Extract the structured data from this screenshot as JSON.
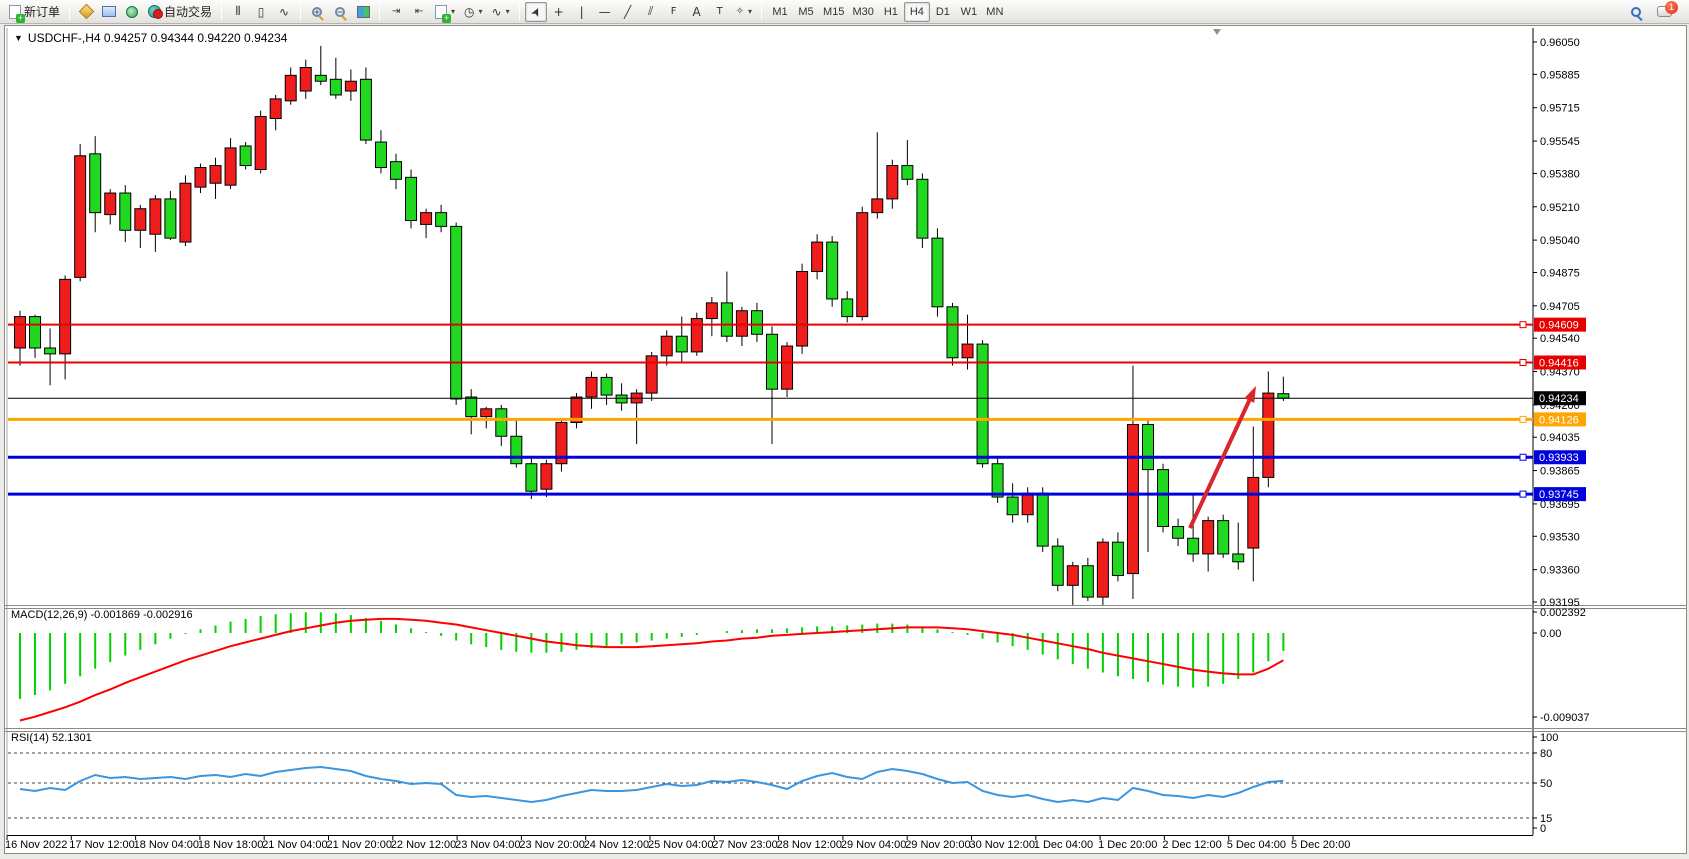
{
  "toolbar": {
    "new_order_label": "新订单",
    "auto_trading_label": "自动交易",
    "chart_tools": {
      "bars": "⫴",
      "candles": "▯",
      "line": "∿",
      "zoom_in": "+",
      "zoom_out": "−",
      "cursor": "➤",
      "crosshair": "+",
      "vline": "|",
      "hline": "—",
      "trendline": "╱",
      "channel": "⫽",
      "fibo": "F",
      "text": "A",
      "label": "T",
      "arrows": "✧"
    },
    "timeframes": [
      "M1",
      "M5",
      "M15",
      "M30",
      "H1",
      "H4",
      "D1",
      "W1",
      "MN"
    ],
    "active_timeframe": "H4",
    "notification_count": "1"
  },
  "window": {
    "symbol_title": "USDCHF-,H4  0.94257 0.94344 0.94220 0.94234",
    "expander": "▼"
  },
  "chart_data": {
    "type": "candlestick",
    "symbol": "USDCHF-",
    "timeframe": "H4",
    "current_ohlc": {
      "open": "0.94257",
      "high": "0.94344",
      "low": "0.94220",
      "close": "0.94234"
    },
    "bull_color": "#f01d1d",
    "bear_color": "#1fd81f",
    "y_ticks": [
      "0.96050",
      "0.95885",
      "0.95715",
      "0.95545",
      "0.95380",
      "0.95210",
      "0.95040",
      "0.94875",
      "0.94705",
      "0.94540",
      "0.94370",
      "0.94200",
      "0.94035",
      "0.93865",
      "0.93695",
      "0.93530",
      "0.93360",
      "0.93195"
    ],
    "y_range": {
      "top_price": 0.9605,
      "bottom_price": 0.93195
    },
    "x_labels": [
      "16 Nov 2022",
      "17 Nov 12:00",
      "18 Nov 04:00",
      "18 Nov 18:00",
      "21 Nov 04:00",
      "21 Nov 20:00",
      "22 Nov 12:00",
      "23 Nov 04:00",
      "23 Nov 20:00",
      "24 Nov 12:00",
      "25 Nov 04:00",
      "27 Nov 23:00",
      "28 Nov 12:00",
      "29 Nov 04:00",
      "29 Nov 20:00",
      "30 Nov 12:00",
      "1 Dec 04:00",
      "1 Dec 20:00",
      "2 Dec 12:00",
      "5 Dec 04:00",
      "5 Dec 20:00"
    ],
    "hlines": [
      {
        "price": 0.94609,
        "label": "0.94609",
        "color": "#e60000",
        "width": 2
      },
      {
        "price": 0.94416,
        "label": "0.94416",
        "color": "#e60000",
        "width": 2
      },
      {
        "price": 0.94234,
        "label": "0.94234",
        "color": "#000000",
        "width": 1,
        "current": true
      },
      {
        "price": 0.94126,
        "label": "0.94126",
        "color": "#ffa500",
        "width": 3
      },
      {
        "price": 0.93933,
        "label": "0.93933",
        "color": "#0000dd",
        "width": 3
      },
      {
        "price": 0.93745,
        "label": "0.93745",
        "color": "#0000dd",
        "width": 3
      }
    ],
    "candles": [
      [
        0.9449,
        0.9468,
        0.944,
        0.9465
      ],
      [
        0.9465,
        0.9466,
        0.9444,
        0.9449
      ],
      [
        0.9449,
        0.9459,
        0.943,
        0.9446
      ],
      [
        0.9446,
        0.9486,
        0.9433,
        0.9484
      ],
      [
        0.9485,
        0.9553,
        0.9483,
        0.9547
      ],
      [
        0.9548,
        0.9557,
        0.9508,
        0.9518
      ],
      [
        0.9517,
        0.953,
        0.9512,
        0.9528
      ],
      [
        0.9528,
        0.9532,
        0.9503,
        0.9509
      ],
      [
        0.9509,
        0.9522,
        0.95,
        0.952
      ],
      [
        0.9507,
        0.9527,
        0.9498,
        0.9525
      ],
      [
        0.9525,
        0.9529,
        0.9504,
        0.9505
      ],
      [
        0.9503,
        0.9537,
        0.9501,
        0.9533
      ],
      [
        0.9531,
        0.9543,
        0.9528,
        0.9541
      ],
      [
        0.9533,
        0.9546,
        0.9525,
        0.9542
      ],
      [
        0.9532,
        0.9556,
        0.953,
        0.9551
      ],
      [
        0.9552,
        0.9554,
        0.954,
        0.9542
      ],
      [
        0.954,
        0.957,
        0.9538,
        0.9567
      ],
      [
        0.9566,
        0.9578,
        0.956,
        0.9576
      ],
      [
        0.9575,
        0.9592,
        0.9573,
        0.9588
      ],
      [
        0.958,
        0.9596,
        0.9576,
        0.9592
      ],
      [
        0.9588,
        0.9603,
        0.9583,
        0.9585
      ],
      [
        0.9586,
        0.9597,
        0.9576,
        0.9578
      ],
      [
        0.958,
        0.9591,
        0.9575,
        0.9585
      ],
      [
        0.9586,
        0.9592,
        0.9553,
        0.9555
      ],
      [
        0.9554,
        0.956,
        0.9538,
        0.9541
      ],
      [
        0.9544,
        0.9548,
        0.953,
        0.9535
      ],
      [
        0.9536,
        0.954,
        0.951,
        0.9514
      ],
      [
        0.9512,
        0.952,
        0.9505,
        0.9518
      ],
      [
        0.9518,
        0.9522,
        0.9508,
        0.9511
      ],
      [
        0.9511,
        0.9513,
        0.942,
        0.9423
      ],
      [
        0.9424,
        0.9428,
        0.9405,
        0.9414
      ],
      [
        0.9414,
        0.9419,
        0.9408,
        0.9418
      ],
      [
        0.9418,
        0.942,
        0.9399,
        0.9404
      ],
      [
        0.9404,
        0.9412,
        0.9388,
        0.939
      ],
      [
        0.939,
        0.9394,
        0.9372,
        0.9376
      ],
      [
        0.9377,
        0.9392,
        0.9373,
        0.939
      ],
      [
        0.939,
        0.9413,
        0.9386,
        0.9411
      ],
      [
        0.9411,
        0.9426,
        0.9408,
        0.9424
      ],
      [
        0.9424,
        0.9437,
        0.9418,
        0.9434
      ],
      [
        0.9434,
        0.9436,
        0.942,
        0.9425
      ],
      [
        0.9425,
        0.9431,
        0.9417,
        0.9421
      ],
      [
        0.9421,
        0.9428,
        0.94,
        0.9426
      ],
      [
        0.9426,
        0.9447,
        0.9422,
        0.9445
      ],
      [
        0.9445,
        0.9458,
        0.944,
        0.9455
      ],
      [
        0.9455,
        0.9465,
        0.9442,
        0.9447
      ],
      [
        0.9447,
        0.9467,
        0.9445,
        0.9464
      ],
      [
        0.9464,
        0.9475,
        0.9455,
        0.9472
      ],
      [
        0.9472,
        0.9488,
        0.9452,
        0.9455
      ],
      [
        0.9455,
        0.947,
        0.945,
        0.9468
      ],
      [
        0.9468,
        0.9472,
        0.9452,
        0.9456
      ],
      [
        0.9456,
        0.946,
        0.94,
        0.9428
      ],
      [
        0.9428,
        0.9452,
        0.9424,
        0.945
      ],
      [
        0.945,
        0.9492,
        0.9446,
        0.9488
      ],
      [
        0.9488,
        0.9507,
        0.9484,
        0.9503
      ],
      [
        0.9503,
        0.9506,
        0.947,
        0.9474
      ],
      [
        0.9474,
        0.9478,
        0.9462,
        0.9465
      ],
      [
        0.9465,
        0.9521,
        0.9463,
        0.9518
      ],
      [
        0.9518,
        0.9559,
        0.9515,
        0.9525
      ],
      [
        0.9525,
        0.9545,
        0.952,
        0.9542
      ],
      [
        0.9542,
        0.9555,
        0.9532,
        0.9535
      ],
      [
        0.9535,
        0.9538,
        0.95,
        0.9505
      ],
      [
        0.9505,
        0.951,
        0.9465,
        0.947
      ],
      [
        0.947,
        0.9472,
        0.944,
        0.9444
      ],
      [
        0.9444,
        0.9466,
        0.9438,
        0.9451
      ],
      [
        0.9451,
        0.9453,
        0.9388,
        0.939
      ],
      [
        0.939,
        0.9394,
        0.937,
        0.9373
      ],
      [
        0.9373,
        0.938,
        0.936,
        0.9364
      ],
      [
        0.9364,
        0.9378,
        0.936,
        0.9375
      ],
      [
        0.9375,
        0.9378,
        0.9345,
        0.9348
      ],
      [
        0.9348,
        0.9352,
        0.9325,
        0.9328
      ],
      [
        0.9328,
        0.934,
        0.9318,
        0.9338
      ],
      [
        0.9338,
        0.9342,
        0.932,
        0.9322
      ],
      [
        0.9322,
        0.9352,
        0.9318,
        0.935
      ],
      [
        0.935,
        0.9355,
        0.933,
        0.9333
      ],
      [
        0.9334,
        0.944,
        0.9321,
        0.941
      ],
      [
        0.941,
        0.9412,
        0.9345,
        0.9387
      ],
      [
        0.9387,
        0.939,
        0.9355,
        0.9358
      ],
      [
        0.9358,
        0.9362,
        0.9348,
        0.9352
      ],
      [
        0.9352,
        0.9375,
        0.934,
        0.9344
      ],
      [
        0.9344,
        0.9363,
        0.9335,
        0.9361
      ],
      [
        0.9361,
        0.9364,
        0.9342,
        0.9344
      ],
      [
        0.9344,
        0.936,
        0.9336,
        0.934
      ],
      [
        0.9347,
        0.9409,
        0.933,
        0.9383
      ],
      [
        0.9383,
        0.9437,
        0.9378,
        0.9426
      ],
      [
        0.94257,
        0.94344,
        0.9422,
        0.94234
      ]
    ],
    "indicators": {
      "macd": {
        "label": "MACD(12,26,9)",
        "values_text": "-0.001869 -0.002916",
        "label_full": "MACD(12,26,9) -0.001869 -0.002916",
        "ticks": [
          "0.002392",
          "0.00",
          "-0.009037"
        ],
        "histogram_color": "#00d200",
        "signal_color": "#ff0000",
        "histogram": [
          -0.007,
          -0.0066,
          -0.0061,
          -0.0054,
          -0.0046,
          -0.0038,
          -0.0031,
          -0.0024,
          -0.0018,
          -0.0012,
          -0.0006,
          -0.0001,
          0.0004,
          0.0008,
          0.0012,
          0.0015,
          0.0018,
          0.002,
          0.0021,
          0.0022,
          0.0022,
          0.0021,
          0.0019,
          0.0016,
          0.0013,
          0.0009,
          0.0005,
          0.0001,
          -0.0003,
          -0.0008,
          -0.0012,
          -0.0015,
          -0.0018,
          -0.002,
          -0.0021,
          -0.0021,
          -0.002,
          -0.0018,
          -0.0016,
          -0.0014,
          -0.0012,
          -0.001,
          -0.0008,
          -0.0006,
          -0.0004,
          -0.0002,
          0.0,
          0.0002,
          0.0003,
          0.0004,
          0.0004,
          0.0005,
          0.0006,
          0.0007,
          0.0007,
          0.0008,
          0.0009,
          0.001,
          0.001,
          0.0009,
          0.0007,
          0.0004,
          0.0001,
          -0.0002,
          -0.0006,
          -0.001,
          -0.0014,
          -0.0018,
          -0.0023,
          -0.0028,
          -0.0033,
          -0.0038,
          -0.0042,
          -0.0046,
          -0.0049,
          -0.0052,
          -0.0055,
          -0.0057,
          -0.0058,
          -0.0057,
          -0.0054,
          -0.0049,
          -0.0042,
          -0.003,
          -0.0019
        ],
        "signal": [
          -0.0093,
          -0.0089,
          -0.0084,
          -0.0079,
          -0.0073,
          -0.0066,
          -0.006,
          -0.0053,
          -0.0047,
          -0.0041,
          -0.0035,
          -0.0029,
          -0.0024,
          -0.0019,
          -0.0014,
          -0.001,
          -0.0006,
          -0.0002,
          0.0002,
          0.0005,
          0.0008,
          0.0011,
          0.0013,
          0.0014,
          0.0015,
          0.0015,
          0.0014,
          0.0013,
          0.0011,
          0.0009,
          0.0006,
          0.0003,
          0.0,
          -0.0003,
          -0.0006,
          -0.0009,
          -0.0011,
          -0.0013,
          -0.0014,
          -0.0015,
          -0.0015,
          -0.0015,
          -0.0014,
          -0.0013,
          -0.0012,
          -0.0011,
          -0.0009,
          -0.0008,
          -0.0006,
          -0.0005,
          -0.0003,
          -0.0002,
          -0.0001,
          0.0,
          0.0001,
          0.0002,
          0.0003,
          0.0004,
          0.0005,
          0.0006,
          0.0006,
          0.0006,
          0.0005,
          0.0004,
          0.0002,
          0.0,
          -0.0002,
          -0.0005,
          -0.0008,
          -0.0011,
          -0.0014,
          -0.0017,
          -0.0021,
          -0.0024,
          -0.0027,
          -0.003,
          -0.0033,
          -0.0036,
          -0.0039,
          -0.0041,
          -0.0043,
          -0.0044,
          -0.0044,
          -0.0038,
          -0.0029
        ]
      },
      "rsi": {
        "label": "RSI(14)",
        "value_text": "52.1301",
        "label_full": "RSI(14) 52.1301",
        "ticks": [
          "100",
          "80",
          "50",
          "15",
          "0"
        ],
        "dashed_levels": [
          80,
          50,
          15
        ],
        "line_color": "#3a96e0",
        "values": [
          44,
          42,
          45,
          43,
          52,
          58,
          55,
          56,
          54,
          55,
          56,
          54,
          57,
          58,
          56,
          59,
          57,
          61,
          63,
          65,
          66,
          64,
          62,
          57,
          54,
          52,
          49,
          50,
          49,
          38,
          36,
          37,
          35,
          33,
          31,
          33,
          37,
          40,
          43,
          42,
          42,
          43,
          46,
          49,
          47,
          48,
          52,
          51,
          53,
          51,
          48,
          44,
          52,
          57,
          60,
          56,
          54,
          61,
          64,
          62,
          59,
          54,
          50,
          51,
          42,
          38,
          36,
          38,
          34,
          31,
          33,
          31,
          35,
          33,
          45,
          42,
          38,
          37,
          35,
          38,
          36,
          40,
          46,
          51,
          52.13
        ]
      }
    },
    "annotations": {
      "arrow": {
        "from": [
          1190,
          528
        ],
        "to": [
          1256,
          386
        ],
        "color": "#d8262c"
      }
    }
  }
}
